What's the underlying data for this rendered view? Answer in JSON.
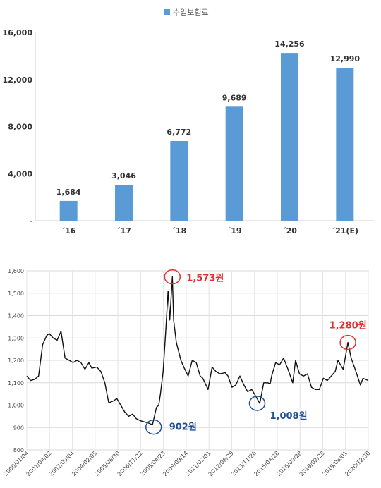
{
  "chart_data": [
    {
      "type": "bar",
      "legend": {
        "label": "수입보험료",
        "position": "top-center"
      },
      "categories": [
        "´16",
        "´17",
        "´18",
        "´19",
        "´20",
        "´21(E)"
      ],
      "values": [
        1684,
        3046,
        6772,
        9689,
        14256,
        12990
      ],
      "value_labels": [
        "1,684",
        "3,046",
        "6,772",
        "9,689",
        "14,256",
        "12,990"
      ],
      "yticks": [
        "-",
        "4,000",
        "8,000",
        "12,000",
        "16,000"
      ],
      "ylim": [
        0,
        16000
      ],
      "grid": false,
      "colors": {
        "bar": "#5b9bd5"
      }
    },
    {
      "type": "line",
      "yticks": [
        "800",
        "900",
        "1,000",
        "1,100",
        "1,200",
        "1,300",
        "1,400",
        "1,500",
        "1,600"
      ],
      "ylim": [
        800,
        1600
      ],
      "xticks": [
        "2000/01/04",
        "2001/04/02",
        "2002/09/04",
        "2004/02/05",
        "2005/06/30",
        "2006/11/22",
        "2008/04/23",
        "2009/09/14",
        "2011/02/01",
        "2012/06/29",
        "2013/11/26",
        "2015/04/28",
        "2016/09/28",
        "2018/02/28",
        "2019/08/01",
        "2020/12/30"
      ],
      "xlim": [
        "2000-01-04",
        "2021-06-30"
      ],
      "grid": true,
      "series": [
        {
          "x": [
            "2000-01-04",
            "2000-04-01",
            "2000-07-01",
            "2000-10-01",
            "2001-01-01",
            "2001-04-02",
            "2001-06-01",
            "2001-09-01",
            "2001-12-01",
            "2002-03-01",
            "2002-06-01",
            "2002-09-04",
            "2002-12-01",
            "2003-03-01",
            "2003-06-01",
            "2003-09-01",
            "2003-12-01",
            "2004-02-05",
            "2004-06-01",
            "2004-09-01",
            "2004-12-01",
            "2005-03-01",
            "2005-06-30",
            "2005-09-01",
            "2005-12-01",
            "2006-03-01",
            "2006-06-01",
            "2006-09-01",
            "2006-11-22",
            "2007-03-01",
            "2007-06-01",
            "2007-09-01",
            "2007-12-01",
            "2008-03-01",
            "2008-04-23",
            "2008-06-01",
            "2008-08-01",
            "2008-10-01",
            "2008-11-24",
            "2009-01-01",
            "2009-03-02",
            "2009-04-01",
            "2009-06-01",
            "2009-09-14",
            "2009-12-01",
            "2010-03-01",
            "2010-06-01",
            "2010-09-01",
            "2010-12-01",
            "2011-02-01",
            "2011-06-01",
            "2011-09-01",
            "2011-12-01",
            "2012-03-01",
            "2012-06-29",
            "2012-09-01",
            "2012-12-01",
            "2013-03-01",
            "2013-06-01",
            "2013-09-01",
            "2013-11-26",
            "2014-03-01",
            "2014-06-01",
            "2014-09-01",
            "2014-12-01",
            "2015-03-01",
            "2015-04-28",
            "2015-06-01",
            "2015-09-01",
            "2015-12-01",
            "2016-03-01",
            "2016-06-01",
            "2016-09-28",
            "2016-12-01",
            "2017-03-01",
            "2017-06-01",
            "2017-09-01",
            "2017-12-01",
            "2018-02-28",
            "2018-06-01",
            "2018-09-01",
            "2018-12-01",
            "2019-03-01",
            "2019-06-01",
            "2019-08-01",
            "2019-12-01",
            "2020-03-19",
            "2020-06-01",
            "2020-09-01",
            "2020-12-30",
            "2021-03-01",
            "2021-06-30"
          ],
          "y": [
            1130,
            1110,
            1115,
            1130,
            1270,
            1310,
            1320,
            1300,
            1290,
            1330,
            1210,
            1200,
            1190,
            1200,
            1190,
            1160,
            1190,
            1165,
            1170,
            1150,
            1100,
            1010,
            1020,
            1030,
            1000,
            970,
            950,
            960,
            940,
            930,
            925,
            920,
            912,
            990,
            1000,
            1050,
            1150,
            1330,
            1509,
            1380,
            1573,
            1380,
            1280,
            1200,
            1165,
            1130,
            1200,
            1190,
            1130,
            1120,
            1070,
            1170,
            1150,
            1140,
            1145,
            1130,
            1080,
            1090,
            1130,
            1090,
            1060,
            1070,
            1040,
            1008,
            1100,
            1100,
            1095,
            1130,
            1190,
            1180,
            1210,
            1165,
            1100,
            1200,
            1140,
            1130,
            1140,
            1080,
            1070,
            1070,
            1120,
            1110,
            1130,
            1150,
            1200,
            1160,
            1280,
            1210,
            1160,
            1090,
            1120,
            1110
          ]
        }
      ],
      "annotations": [
        {
          "text": "1,573원",
          "x": "2009-03-02",
          "y": 1573,
          "color": "#e03030"
        },
        {
          "text": "902원",
          "x": "2007-12-27",
          "y": 902,
          "color": "#1f4e96"
        },
        {
          "text": "1,008원",
          "x": "2014-07-03",
          "y": 1008,
          "color": "#1f4e96"
        },
        {
          "text": "1,280원",
          "x": "2020-03-19",
          "y": 1280,
          "color": "#e03030"
        }
      ]
    }
  ]
}
